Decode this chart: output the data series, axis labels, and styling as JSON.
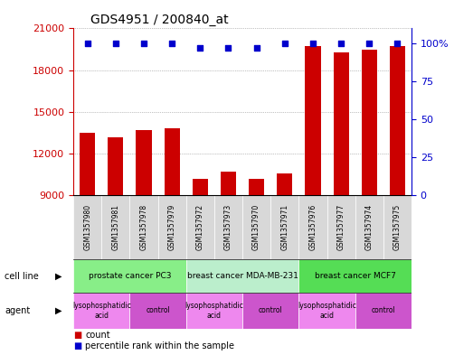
{
  "title": "GDS4951 / 200840_at",
  "samples": [
    "GSM1357980",
    "GSM1357981",
    "GSM1357978",
    "GSM1357979",
    "GSM1357972",
    "GSM1357973",
    "GSM1357970",
    "GSM1357971",
    "GSM1357976",
    "GSM1357977",
    "GSM1357974",
    "GSM1357975"
  ],
  "counts": [
    13500,
    13200,
    13700,
    13800,
    10200,
    10700,
    10150,
    10600,
    19700,
    19300,
    19500,
    19700
  ],
  "percentile": [
    100,
    100,
    100,
    100,
    97,
    97,
    97,
    100,
    100,
    100,
    100,
    100
  ],
  "bar_color": "#cc0000",
  "dot_color": "#0000cc",
  "ymin": 9000,
  "ymax": 21000,
  "yticks": [
    9000,
    12000,
    15000,
    18000,
    21000
  ],
  "y2ticks": [
    0,
    25,
    50,
    75,
    100
  ],
  "y2labels": [
    "0",
    "25",
    "50",
    "75",
    "100%"
  ],
  "cell_line_groups": [
    {
      "label": "prostate cancer PC3",
      "start": 0,
      "end": 4,
      "color": "#88ee88"
    },
    {
      "label": "breast cancer MDA-MB-231",
      "start": 4,
      "end": 8,
      "color": "#bbeecc"
    },
    {
      "label": "breast cancer MCF7",
      "start": 8,
      "end": 12,
      "color": "#55dd55"
    }
  ],
  "agent_groups": [
    {
      "label": "lysophosphatidic\nacid",
      "start": 0,
      "end": 2,
      "color": "#ee88ee"
    },
    {
      "label": "control",
      "start": 2,
      "end": 4,
      "color": "#cc55cc"
    },
    {
      "label": "lysophosphatidic\nacid",
      "start": 4,
      "end": 6,
      "color": "#ee88ee"
    },
    {
      "label": "control",
      "start": 6,
      "end": 8,
      "color": "#cc55cc"
    },
    {
      "label": "lysophosphatidic\nacid",
      "start": 8,
      "end": 10,
      "color": "#ee88ee"
    },
    {
      "label": "control",
      "start": 10,
      "end": 12,
      "color": "#cc55cc"
    }
  ],
  "tick_label_color": "#cc0000",
  "background": "#ffffff",
  "grid_color": "#888888",
  "sample_bg_color": "#d8d8d8"
}
